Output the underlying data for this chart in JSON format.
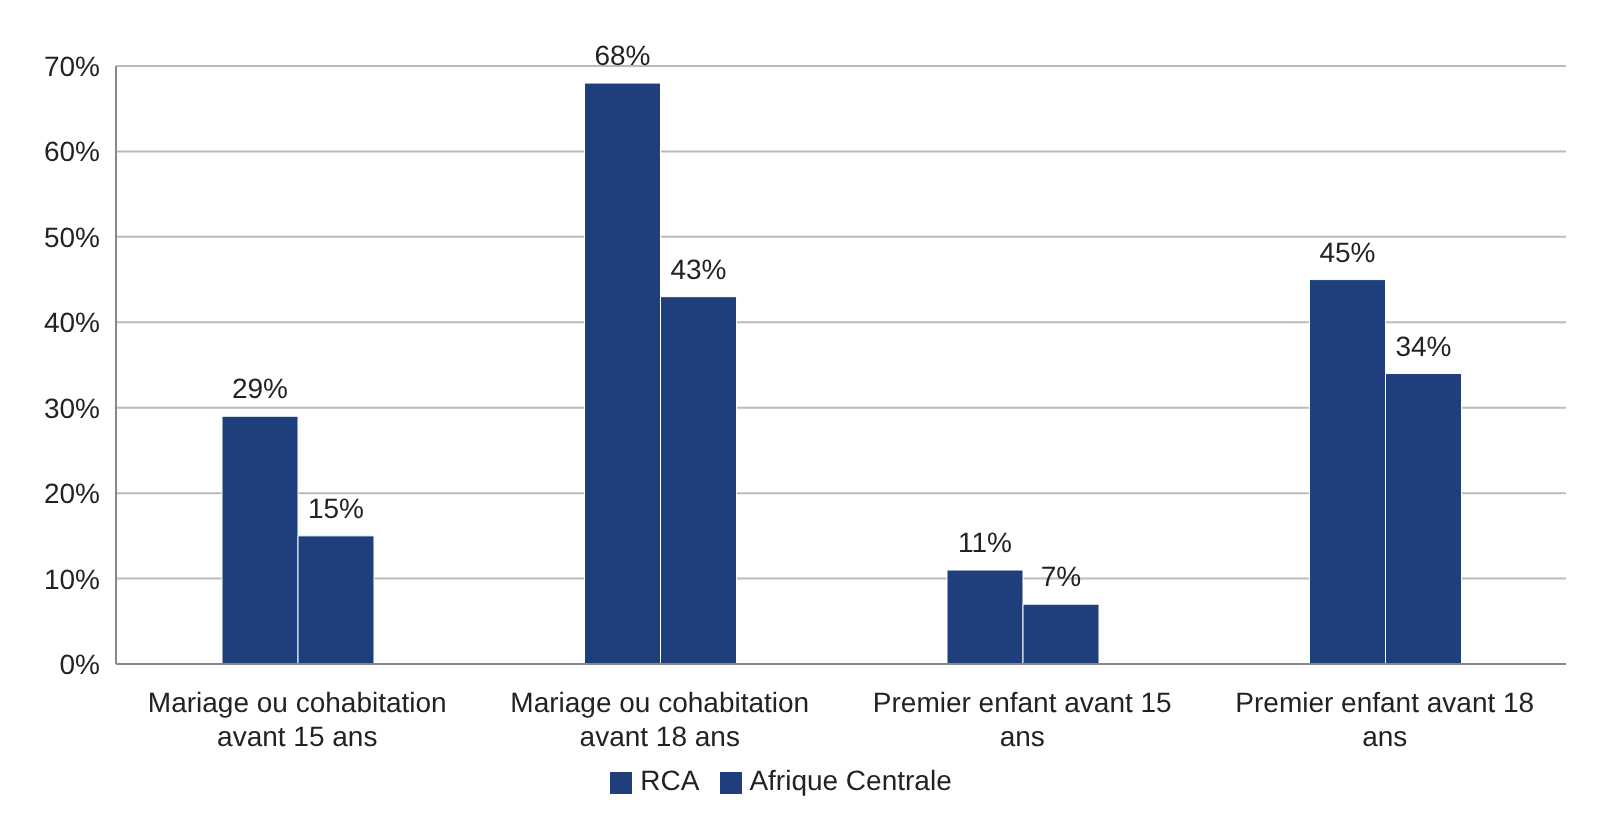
{
  "chart_data": {
    "type": "bar",
    "categories": [
      "Mariage ou cohabitation avant 15 ans",
      "Mariage ou cohabitation avant 18 ans",
      "Premier enfant avant 15 ans",
      "Premier enfant avant 18 ans"
    ],
    "series": [
      {
        "name": "RCA",
        "color": "#1f3f7c",
        "values": [
          29,
          68,
          11,
          45
        ],
        "value_labels": [
          "29%",
          "68%",
          "11%",
          "45%"
        ]
      },
      {
        "name": "Afrique Centrale",
        "color": "#1f3f7c",
        "values": [
          15,
          43,
          7,
          34
        ],
        "value_labels": [
          "15%",
          "43%",
          "7%",
          "34%"
        ]
      }
    ],
    "ylim": [
      0,
      70
    ],
    "yticks": [
      {
        "value": 0,
        "label": "0%"
      },
      {
        "value": 10,
        "label": "10%"
      },
      {
        "value": 20,
        "label": "20%"
      },
      {
        "value": 30,
        "label": "30%"
      },
      {
        "value": 40,
        "label": "40%"
      },
      {
        "value": 50,
        "label": "50%"
      },
      {
        "value": 60,
        "label": "60%"
      },
      {
        "value": 70,
        "label": "70%"
      }
    ],
    "grid": "y",
    "legend": "bottom"
  }
}
